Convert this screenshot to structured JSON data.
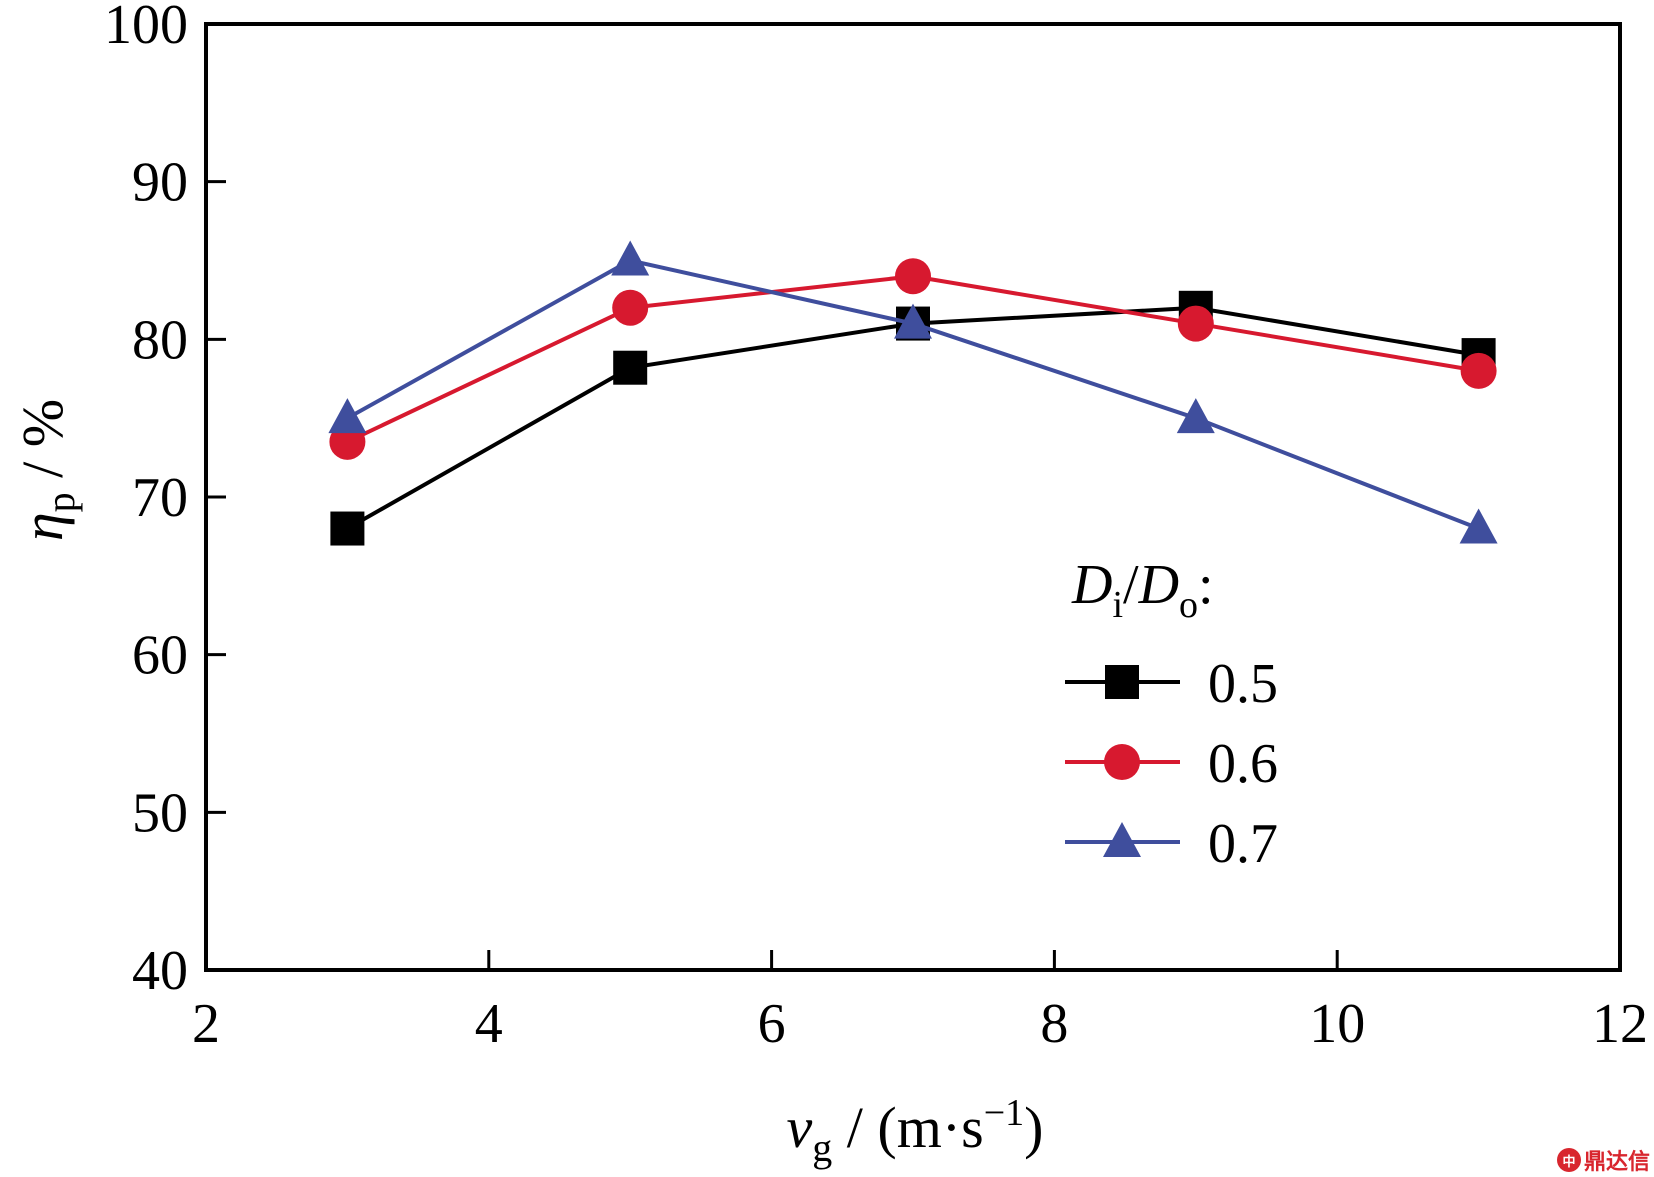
{
  "chart_data": {
    "type": "line",
    "x": [
      3,
      5,
      7,
      9,
      11
    ],
    "xlim": [
      2,
      12
    ],
    "ylim": [
      40,
      100
    ],
    "xticks": [
      2,
      4,
      6,
      8,
      10,
      12
    ],
    "yticks": [
      40,
      50,
      60,
      70,
      80,
      90,
      100
    ],
    "xlabel": {
      "symbol": "v",
      "sub": "g",
      "rest": " / (m·s",
      "sup": "−1",
      "close": ")"
    },
    "ylabel": {
      "symbol": "η",
      "sub": "p",
      "rest": " / %"
    },
    "legend": {
      "title": {
        "a": "D",
        "a_sub": "i",
        "slash": "/",
        "b": "D",
        "b_sub": "o",
        "colon": ":"
      },
      "position": "right"
    },
    "grid": false,
    "series": [
      {
        "name": "0.5",
        "color": "#000000",
        "marker": "square",
        "values": [
          68,
          78.2,
          81,
          82,
          79
        ]
      },
      {
        "name": "0.6",
        "color": "#d7192f",
        "marker": "circle",
        "values": [
          73.5,
          82,
          84,
          81,
          78
        ]
      },
      {
        "name": "0.7",
        "color": "#3f4e9d",
        "marker": "triangle",
        "values": [
          75,
          85,
          81,
          75,
          68
        ]
      }
    ]
  },
  "watermark": {
    "logo": "中",
    "text": "鼎达信"
  }
}
